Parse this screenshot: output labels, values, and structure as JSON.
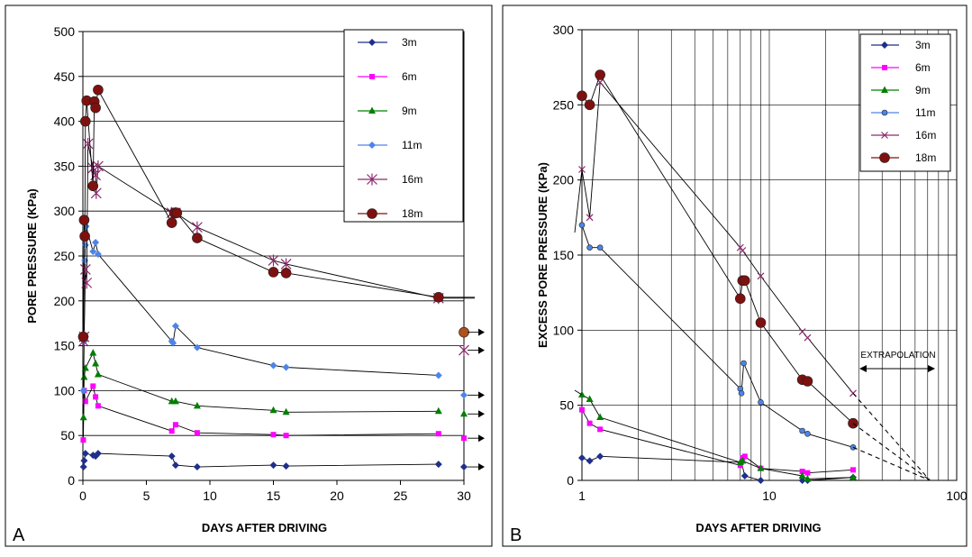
{
  "chart_data": [
    {
      "type": "line",
      "panel_label": "A",
      "xlabel": "DAYS AFTER DRIVING",
      "ylabel": "PORE PRESSURE  (KPa)",
      "xlim": [
        0,
        30
      ],
      "ylim": [
        0,
        500
      ],
      "x_ticks": [
        "0",
        "5",
        "10",
        "15",
        "20",
        "25",
        "30"
      ],
      "y_ticks": [
        "0",
        "50",
        "100",
        "150",
        "200",
        "250",
        "300",
        "350",
        "400",
        "450",
        "500"
      ],
      "grid": "horizontal",
      "legend": "top-right",
      "series": [
        {
          "name": "3m",
          "color": "#1f2f8c",
          "marker": "diamond",
          "x": [
            0.05,
            0.1,
            0.2,
            0.8,
            1.0,
            1.2,
            7.0,
            7.3,
            9.0,
            15.0,
            16.0,
            28.0
          ],
          "y": [
            15,
            22,
            30,
            28,
            27,
            30,
            27,
            17,
            15,
            17,
            16,
            18
          ],
          "end": {
            "x": 30,
            "y": 15
          }
        },
        {
          "name": "6m",
          "color": "#ff00ff",
          "marker": "square",
          "x": [
            0.03,
            0.1,
            0.2,
            0.8,
            1.0,
            1.2,
            7.0,
            7.3,
            9.0,
            15.0,
            16.0,
            28.0
          ],
          "y": [
            45,
            100,
            88,
            105,
            93,
            83,
            55,
            62,
            53,
            51,
            50,
            52
          ],
          "end": {
            "x": 30,
            "y": 47
          }
        },
        {
          "name": "9m",
          "color": "#007f00",
          "marker": "triangle",
          "x": [
            0.05,
            0.1,
            0.2,
            0.8,
            1.0,
            1.2,
            7.0,
            7.3,
            9.0,
            15.0,
            16.0,
            28.0
          ],
          "y": [
            70,
            115,
            125,
            142,
            130,
            118,
            88,
            88,
            83,
            78,
            76,
            77
          ],
          "end": {
            "x": 30,
            "y": 74
          }
        },
        {
          "name": "11m",
          "color": "#4d84e8",
          "marker": "diamond",
          "x": [
            0.05,
            0.1,
            0.15,
            0.2,
            0.25,
            0.8,
            1.0,
            1.2,
            7.0,
            7.1,
            7.3,
            9.0,
            15.0,
            16.0,
            28.0
          ],
          "y": [
            100,
            155,
            245,
            262,
            283,
            255,
            265,
            252,
            155,
            153,
            172,
            148,
            128,
            126,
            117
          ],
          "end": {
            "x": 30,
            "y": 95
          }
        },
        {
          "name": "16m",
          "color": "#8b2a6c",
          "marker": "star",
          "x": [
            0.05,
            0.1,
            0.2,
            0.3,
            0.4,
            0.8,
            1.0,
            1.05,
            1.2,
            7.0,
            7.3,
            9.0,
            15.0,
            16.0,
            28.0
          ],
          "y": [
            155,
            160,
            235,
            220,
            375,
            348,
            340,
            320,
            350,
            298,
            298,
            282,
            245,
            241,
            203
          ],
          "end": {
            "x": 30,
            "y": 145
          }
        },
        {
          "name": "18m",
          "color": "#7f1010",
          "marker": "circle",
          "x": [
            0.03,
            0.1,
            0.15,
            0.2,
            0.3,
            0.8,
            0.9,
            1.0,
            1.2,
            7.0,
            7.2,
            7.4,
            9.0,
            15.0,
            16.0,
            28.0
          ],
          "y": [
            160,
            290,
            272,
            400,
            423,
            328,
            422,
            415,
            435,
            287,
            298,
            298,
            270,
            232,
            231,
            204
          ],
          "end": {
            "x": 30,
            "y": 165
          }
        }
      ]
    },
    {
      "type": "line",
      "panel_label": "B",
      "xlabel": "DAYS AFTER DRIVING",
      "ylabel": "EXCESS  PORE  PRESSURE  (KPa)",
      "xscale": "log",
      "xlim": [
        1,
        100
      ],
      "ylim": [
        0,
        300
      ],
      "x_ticks": [
        "1",
        "10",
        "100"
      ],
      "y_ticks": [
        "0",
        "50",
        "100",
        "150",
        "200",
        "250",
        "300"
      ],
      "grid": "both",
      "legend": "top-right",
      "annotation": "EXTRAPOLATION",
      "series": [
        {
          "name": "3m",
          "color": "#1f2f8c",
          "marker": "diamond",
          "x": [
            1.0,
            1.1,
            1.25,
            7.1,
            7.4,
            9.0,
            15.0,
            16.0,
            28.0
          ],
          "y": [
            15,
            13,
            16,
            12,
            3,
            0,
            0,
            0,
            2
          ]
        },
        {
          "name": "6m",
          "color": "#ff00ff",
          "marker": "square",
          "x": [
            1.0,
            1.1,
            1.25,
            7.0,
            7.2,
            7.4,
            9.0,
            15.0,
            16.0,
            28.0
          ],
          "y": [
            47,
            38,
            34,
            10,
            15,
            16,
            8,
            6,
            5,
            7
          ]
        },
        {
          "name": "9m",
          "color": "#007f00",
          "marker": "triangle",
          "x": [
            1.0,
            1.1,
            1.25,
            7.0,
            7.2,
            9.0,
            15.0,
            16.0,
            28.0
          ],
          "y": [
            57,
            54,
            42,
            12,
            13,
            8,
            3,
            1,
            2
          ]
        },
        {
          "name": "11m",
          "color": "#4d84e8",
          "marker": "circle",
          "x": [
            1.0,
            1.1,
            1.25,
            7.0,
            7.1,
            7.3,
            9.0,
            15.0,
            16.0,
            28.0
          ],
          "y": [
            170,
            155,
            155,
            61,
            58,
            78,
            52,
            33,
            31,
            22
          ]
        },
        {
          "name": "16m",
          "color": "#8b2a6c",
          "marker": "x",
          "x": [
            1.0,
            1.1,
            1.25,
            7.0,
            7.2,
            9.0,
            15.0,
            16.0,
            28.0
          ],
          "y": [
            207,
            175,
            265,
            155,
            153,
            136,
            99,
            95,
            58
          ]
        },
        {
          "name": "18m",
          "color": "#7f1010",
          "marker": "circle",
          "x": [
            1.0,
            1.1,
            1.25,
            7.0,
            7.2,
            7.4,
            9.0,
            15.0,
            16.0,
            28.0
          ],
          "y": [
            256,
            250,
            270,
            121,
            133,
            133,
            105,
            67,
            66,
            38
          ]
        }
      ],
      "extrapolation": [
        {
          "from": {
            "x": 28,
            "y": 58
          },
          "to": {
            "x": 72,
            "y": 0
          }
        },
        {
          "from": {
            "x": 28,
            "y": 38
          },
          "to": {
            "x": 72,
            "y": 0
          }
        },
        {
          "from": {
            "x": 28,
            "y": 22
          },
          "to": {
            "x": 72,
            "y": 0
          }
        }
      ]
    }
  ]
}
